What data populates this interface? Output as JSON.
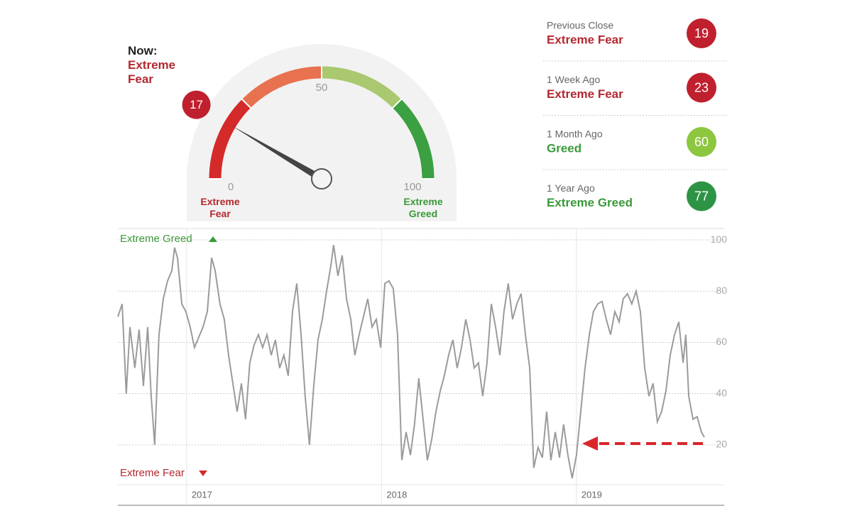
{
  "chart_data": [
    {
      "type": "gauge",
      "title": "Now:",
      "rating": "Extreme Fear",
      "value": 17,
      "lim": [
        0,
        100
      ],
      "ticks": [
        0,
        50,
        100
      ],
      "low_label": "Extreme Fear",
      "high_label": "Extreme Greed",
      "color": "#c0202e"
    },
    {
      "type": "line",
      "top_label": "Extreme Greed",
      "bottom_label": "Extreme Fear",
      "color": "#9b9b9b",
      "xlim": [
        2016.647,
        2019.758
      ],
      "xticks": [
        2017,
        2018,
        2019
      ],
      "ylim": [
        5,
        105
      ],
      "yticks": [
        20,
        40,
        60,
        80,
        100
      ],
      "grid": true,
      "x": [
        2016.647,
        2016.669,
        2016.69,
        2016.709,
        2016.734,
        2016.756,
        2016.778,
        2016.8,
        2016.818,
        2016.836,
        2016.858,
        2016.88,
        2016.902,
        2016.924,
        2016.938,
        2016.953,
        2016.975,
        2016.996,
        2017.018,
        2017.04,
        2017.062,
        2017.084,
        2017.106,
        2017.128,
        2017.146,
        2017.171,
        2017.193,
        2017.215,
        2017.237,
        2017.259,
        2017.281,
        2017.302,
        2017.324,
        2017.346,
        2017.368,
        2017.39,
        2017.412,
        2017.434,
        2017.455,
        2017.477,
        2017.499,
        2017.521,
        2017.543,
        2017.565,
        2017.587,
        2017.608,
        2017.63,
        2017.652,
        2017.674,
        2017.696,
        2017.718,
        2017.74,
        2017.754,
        2017.776,
        2017.798,
        2017.82,
        2017.842,
        2017.863,
        2017.885,
        2017.907,
        2017.929,
        2017.951,
        2017.973,
        2017.995,
        2018.017,
        2018.038,
        2018.06,
        2018.082,
        2018.104,
        2018.126,
        2018.148,
        2018.169,
        2018.191,
        2018.213,
        2018.235,
        2018.257,
        2018.279,
        2018.301,
        2018.322,
        2018.344,
        2018.366,
        2018.388,
        2018.41,
        2018.432,
        2018.454,
        2018.475,
        2018.497,
        2018.519,
        2018.541,
        2018.563,
        2018.585,
        2018.607,
        2018.628,
        2018.65,
        2018.672,
        2018.694,
        2018.716,
        2018.738,
        2018.76,
        2018.781,
        2018.803,
        2018.825,
        2018.847,
        2018.869,
        2018.891,
        2018.913,
        2018.934,
        2018.956,
        2018.978,
        2019.0,
        2019.022,
        2019.044,
        2019.066,
        2019.087,
        2019.109,
        2019.131,
        2019.153,
        2019.175,
        2019.197,
        2019.219,
        2019.24,
        2019.262,
        2019.284,
        2019.306,
        2019.328,
        2019.35,
        2019.372,
        2019.393,
        2019.415,
        2019.437,
        2019.459,
        2019.481,
        2019.503,
        2019.525,
        2019.547,
        2019.561,
        2019.576,
        2019.598,
        2019.619,
        2019.641,
        2019.656
      ],
      "values": [
        70,
        75,
        40,
        66,
        50,
        65,
        43,
        66,
        39,
        20,
        63,
        77,
        84,
        88,
        97,
        93,
        75,
        72,
        66,
        58,
        62,
        66,
        72,
        93,
        88,
        75,
        69,
        55,
        44,
        33,
        44,
        30,
        52,
        59,
        63,
        58,
        63,
        55,
        61,
        50,
        55,
        47,
        72,
        83,
        63,
        39,
        20,
        43,
        61,
        69,
        80,
        90,
        98,
        86,
        94,
        77,
        69,
        55,
        63,
        70,
        77,
        66,
        69,
        58,
        83,
        84,
        81,
        63,
        14,
        25,
        16,
        28,
        46,
        30,
        14,
        22,
        33,
        41,
        47,
        55,
        61,
        50,
        58,
        69,
        61,
        50,
        52,
        39,
        52,
        75,
        66,
        55,
        72,
        83,
        69,
        75,
        79,
        63,
        50,
        11,
        19,
        15,
        33,
        14,
        25,
        15,
        28,
        16,
        7,
        16,
        33,
        50,
        63,
        72,
        75,
        76,
        69,
        63,
        72,
        68,
        77,
        79,
        75,
        80,
        72,
        50,
        39,
        44,
        29,
        33,
        41,
        55,
        63,
        68,
        52,
        63,
        39,
        30,
        31,
        25,
        23
      ]
    }
  ],
  "history": [
    {
      "label": "Previous Close",
      "rating": "Extreme Fear",
      "value": 19,
      "color": "#c0202e",
      "rating_color": "#b3282f"
    },
    {
      "label": "1 Week Ago",
      "rating": "Extreme Fear",
      "value": 23,
      "color": "#c0202e",
      "rating_color": "#b3282f"
    },
    {
      "label": "1 Month Ago",
      "rating": "Greed",
      "value": 60,
      "color": "#8dc63f",
      "rating_color": "#3a9a3a"
    },
    {
      "label": "1 Year Ago",
      "rating": "Extreme Greed",
      "value": 77,
      "color": "#2e9445",
      "rating_color": "#3a9a3a"
    }
  ]
}
